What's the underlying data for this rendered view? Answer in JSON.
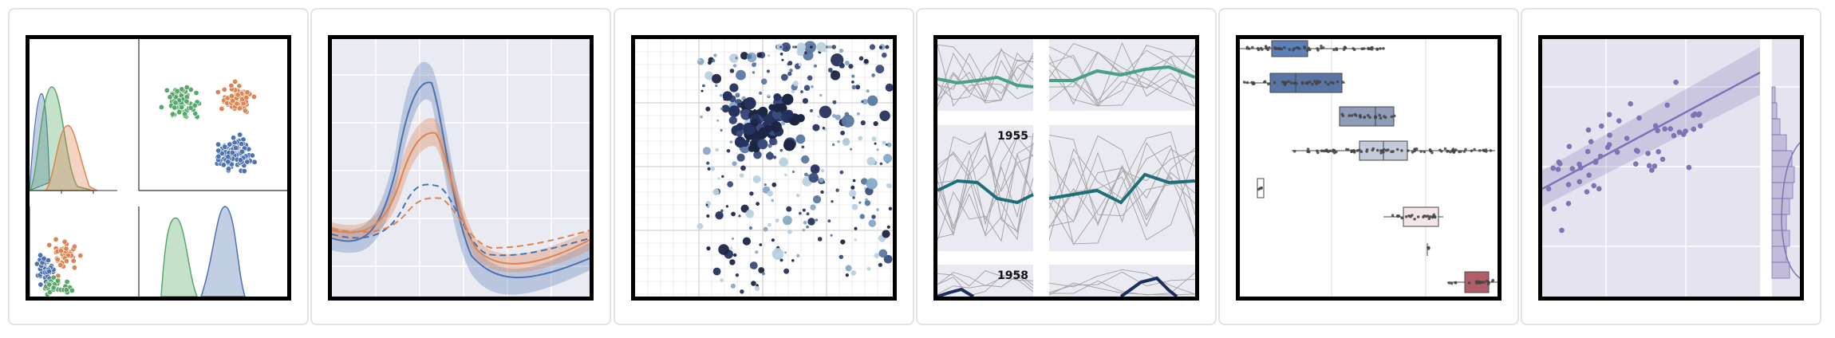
{
  "gallery": {
    "thumbnails": [
      {
        "id": "pairgrid-kde"
      },
      {
        "id": "errorband-lineplots"
      },
      {
        "id": "scatter-bubbles"
      },
      {
        "id": "small-multiples-timeseries",
        "labels": [
          "1955",
          "1958"
        ]
      },
      {
        "id": "horizontal-boxplot-strip"
      },
      {
        "id": "regression-marginals"
      }
    ]
  },
  "colors": {
    "blue": "#4c72b0",
    "orange": "#dd8452",
    "green": "#55a868",
    "purple": "#8172b3",
    "teal": "#1f6f7b",
    "seagreen": "#49a185",
    "navy": "#1c2e5e",
    "panel": "#eaeaf2",
    "lavender": "#e5e3f0"
  }
}
